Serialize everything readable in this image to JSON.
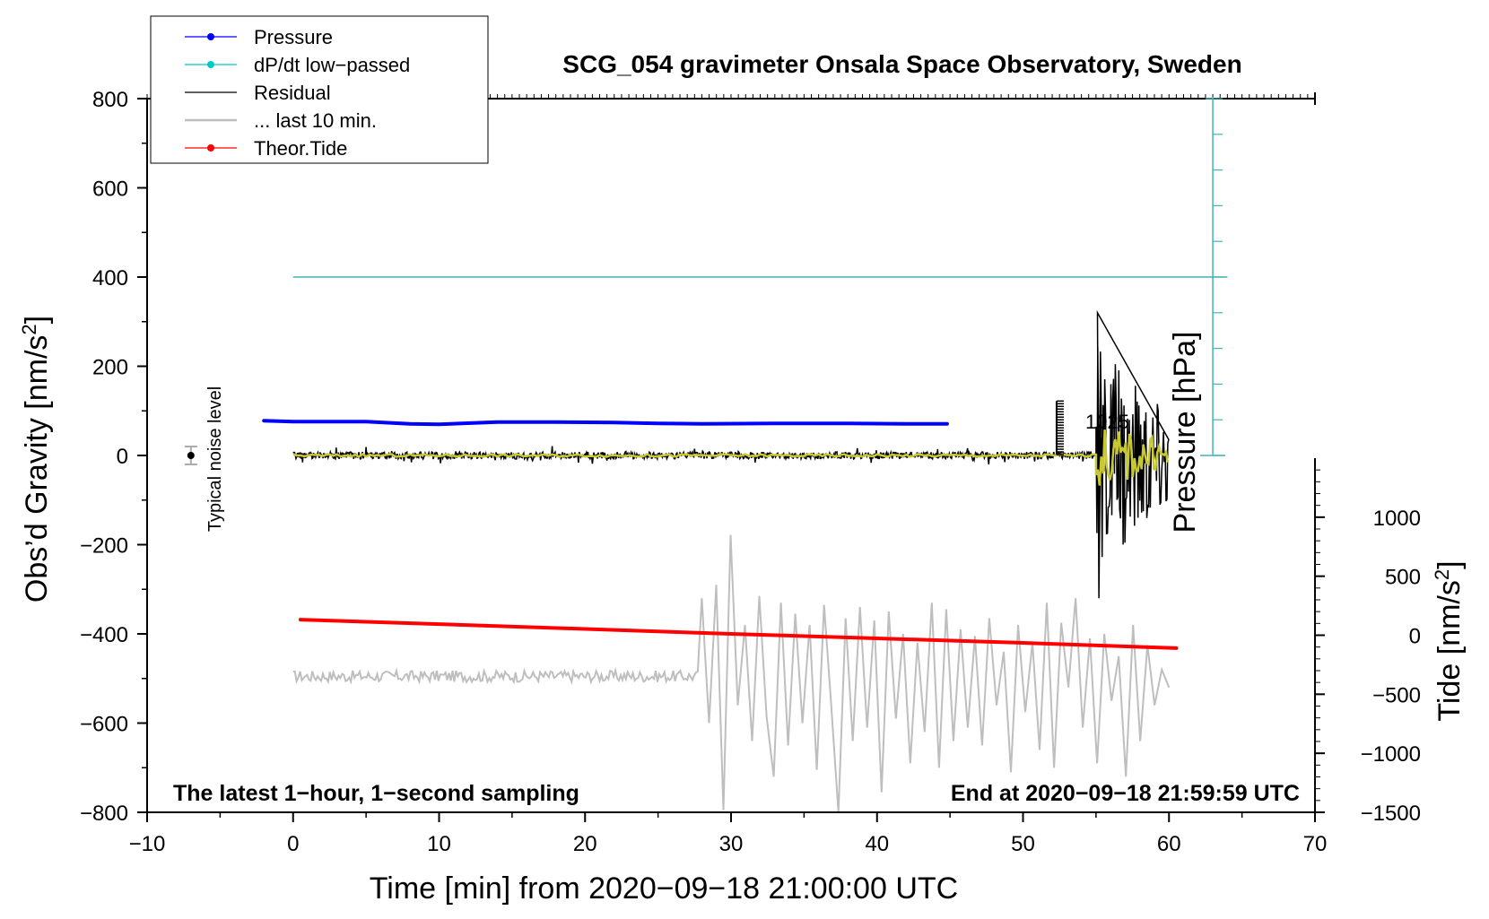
{
  "chart_data": {
    "type": "line",
    "title": "SCG_054 gravimeter Onsala Space Observatory, Sweden",
    "xlabel": "Time [min] from 2020−09−18 21:00:00 UTC",
    "ylabel_left_main": "Obs’d Gravity [nm/s",
    "ylabel_left_sup": "2",
    "ylabel_left_end": "]",
    "ylabel_right_tide_main": "Tide [nm/s",
    "ylabel_right_tide_sup": "2",
    "ylabel_right_tide_end": "]",
    "ylabel_pressure": "Pressure [hPa]",
    "pressure_tick_fragment": "1025",
    "xlim": [
      -10,
      70
    ],
    "ylim": [
      -800,
      800
    ],
    "tide_ylim": [
      -1500,
      1500
    ],
    "x_ticks": [
      {
        "v": -10,
        "label": "−10"
      },
      {
        "v": 0,
        "label": "0"
      },
      {
        "v": 10,
        "label": "10"
      },
      {
        "v": 20,
        "label": "20"
      },
      {
        "v": 30,
        "label": "30"
      },
      {
        "v": 40,
        "label": "40"
      },
      {
        "v": 50,
        "label": "50"
      },
      {
        "v": 60,
        "label": "60"
      },
      {
        "v": 70,
        "label": "70"
      }
    ],
    "y_ticks": [
      {
        "v": 800,
        "label": "800"
      },
      {
        "v": 600,
        "label": "600"
      },
      {
        "v": 400,
        "label": "400"
      },
      {
        "v": 200,
        "label": "200"
      },
      {
        "v": 0,
        "label": "0"
      },
      {
        "v": -200,
        "label": "−200"
      },
      {
        "v": -400,
        "label": "−400"
      },
      {
        "v": -600,
        "label": "−600"
      },
      {
        "v": -800,
        "label": "−800"
      }
    ],
    "tide_ticks": [
      {
        "v": 1000,
        "label": "1000"
      },
      {
        "v": 500,
        "label": "500"
      },
      {
        "v": 0,
        "label": "0"
      },
      {
        "v": -500,
        "label": "−500"
      },
      {
        "v": -1000,
        "label": "−1000"
      },
      {
        "v": -1500,
        "label": "−1500"
      }
    ],
    "legend": [
      {
        "name": "Pressure",
        "color": "#0000ff",
        "marker": true
      },
      {
        "name": "dP/dt low−passed",
        "color": "#00c8c8",
        "marker": true
      },
      {
        "name": "Residual",
        "color": "#000000",
        "marker": false
      },
      {
        "name": "... last 10 min.",
        "color": "#bebebe",
        "marker": false
      },
      {
        "name": "Theor.Tide",
        "color": "#ff0000",
        "marker": true
      }
    ],
    "series": [
      {
        "name": "Pressure",
        "color": "#0000ff",
        "units": "nm/s2 (plotted)",
        "points": [
          [
            -2,
            78
          ],
          [
            0,
            76
          ],
          [
            5,
            76
          ],
          [
            8,
            71
          ],
          [
            10,
            70
          ],
          [
            14,
            75
          ],
          [
            18,
            75
          ],
          [
            22,
            74
          ],
          [
            25,
            72
          ],
          [
            28,
            71
          ],
          [
            33,
            72
          ],
          [
            38,
            72
          ],
          [
            42,
            71
          ],
          [
            44.8,
            71
          ]
        ]
      },
      {
        "name": "dP/dt low−passed",
        "color": "#44b3b3",
        "units": "nm/s2 (plotted)",
        "points": [
          [
            0,
            400
          ],
          [
            64,
            400
          ]
        ]
      },
      {
        "name": "Theor.Tide",
        "color": "#ff0000",
        "units": "nm/s2 (plotted)",
        "points": [
          [
            0.5,
            -368
          ],
          [
            10,
            -378
          ],
          [
            20,
            -389
          ],
          [
            30,
            -400
          ],
          [
            40,
            -410
          ],
          [
            50,
            -420
          ],
          [
            60.5,
            -432
          ]
        ]
      },
      {
        "name": "Residual",
        "color": "#000000",
        "units": "nm/s2",
        "base_amplitude": 8,
        "burst_start_min": 55,
        "burst_peak": 320,
        "burst_trough": -320
      },
      {
        "name": "... last 10 min.",
        "color": "#bebebe",
        "units": "nm/s2",
        "baseline": -495,
        "quiet_end_min": 27.8,
        "max": -178,
        "min": -795
      }
    ],
    "annotations": {
      "noise_label": "Typical noise level",
      "left_note": "The latest 1−hour, 1−second sampling",
      "right_note": "End at 2020−09−18 21:59:59 UTC"
    }
  },
  "colors": {
    "pressure": "#0000ff",
    "dpdt": "#44b3b3",
    "residual": "#000000",
    "last10": "#bebebe",
    "tide": "#ff0000",
    "lowpass": "#c8c832"
  }
}
